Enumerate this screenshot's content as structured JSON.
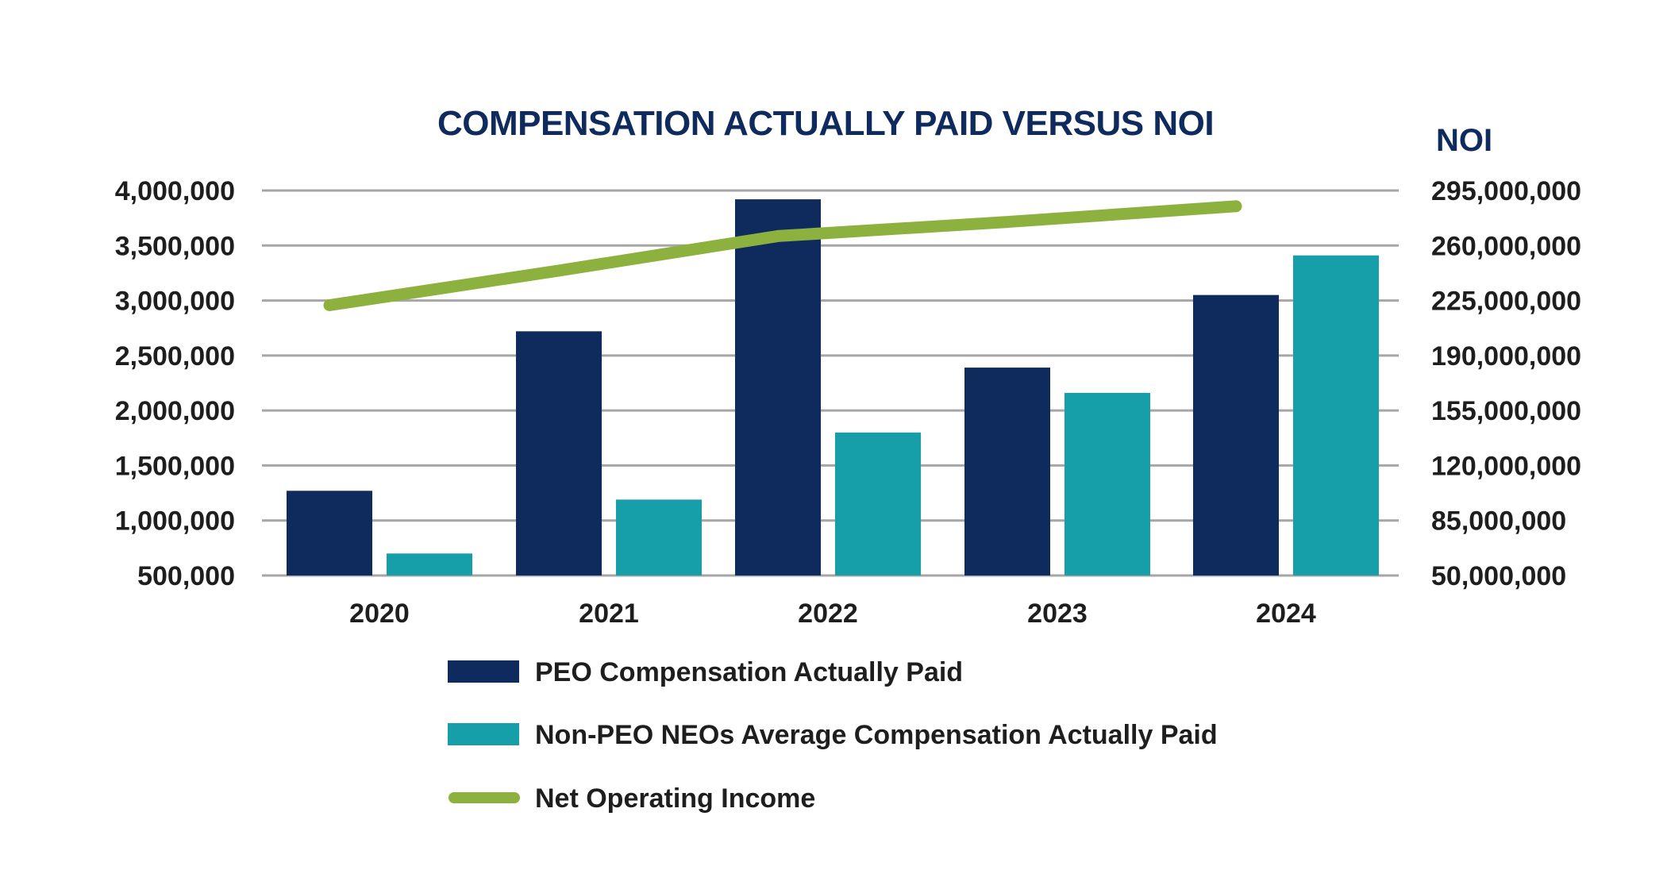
{
  "chart_data": {
    "type": "bar",
    "title": "COMPENSATION ACTUALLY PAID VERSUS NOI",
    "categories": [
      "2020",
      "2021",
      "2022",
      "2023",
      "2024"
    ],
    "left_axis": {
      "ticks": [
        "500,000",
        "1,000,000",
        "1,500,000",
        "2,000,000",
        "2,500,000",
        "3,000,000",
        "3,500,000",
        "4,000,000"
      ],
      "ylim": [
        500000,
        4000000
      ]
    },
    "right_axis": {
      "label": "NOI",
      "ticks": [
        "50,000,000",
        "85,000,000",
        "120,000,000",
        "155,000,000",
        "190,000,000",
        "225,000,000",
        "260,000,000",
        "295,000,000"
      ],
      "ylim": [
        50000000,
        295000000
      ]
    },
    "series": [
      {
        "name": "PEO Compensation Actually Paid",
        "type": "bar",
        "axis": "left",
        "color": "#0f2a5c",
        "values": [
          1270000,
          2720000,
          3920000,
          2390000,
          3050000
        ]
      },
      {
        "name": "Non-PEO NEOs Average Compensation Actually Paid",
        "type": "bar",
        "axis": "left",
        "color": "#169fa9",
        "values": [
          700000,
          1190000,
          1800000,
          2160000,
          3410000
        ]
      },
      {
        "name": "Net Operating Income",
        "type": "line",
        "axis": "right",
        "color": "#8db13e",
        "values": [
          222000000,
          244000000,
          266000000,
          275000000,
          285000000
        ]
      }
    ],
    "colors": {
      "title": "#0f2a5c",
      "grid": "#a6a6a6",
      "text": "#1e1e1e"
    },
    "grid": true,
    "legend_position": "bottom"
  }
}
